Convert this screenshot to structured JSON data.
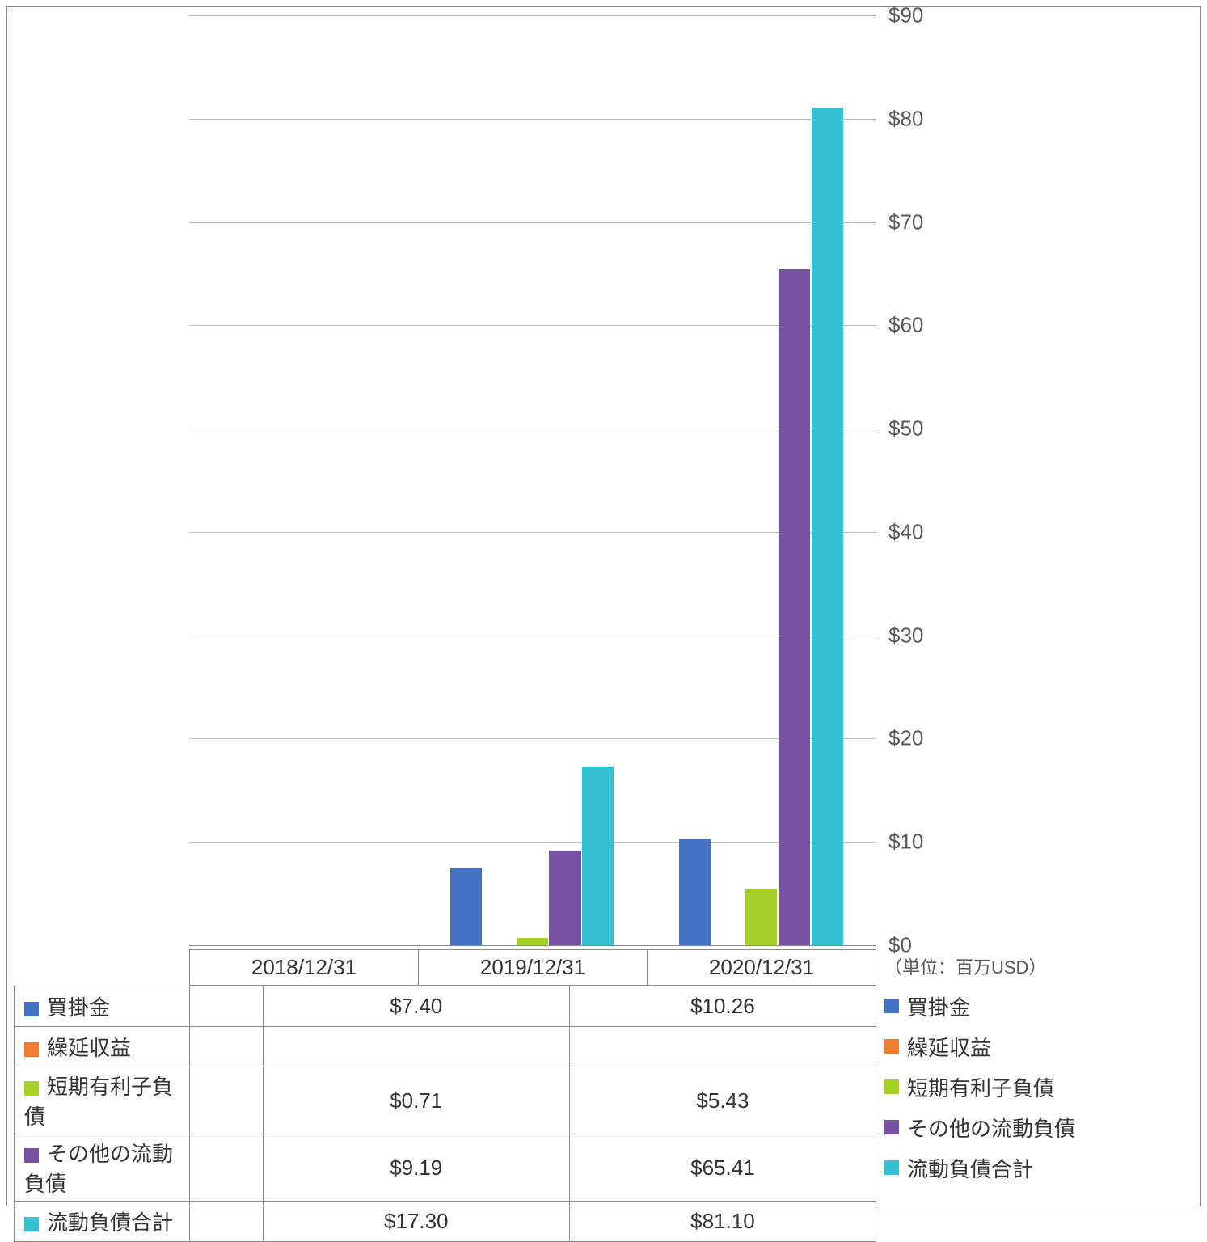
{
  "chart": {
    "type": "bar",
    "unit_label": "（単位：百万USD）",
    "background_color": "#ffffff",
    "grid_color": "#bfbfbf",
    "border_color": "#888888",
    "tick_font_size": 26,
    "tick_color": "#595959",
    "label_font_size": 26,
    "label_color": "#333333",
    "y_axis": {
      "min": 0,
      "max": 90,
      "tick_step": 10,
      "ticks": [
        "$0",
        "$10",
        "$20",
        "$30",
        "$40",
        "$50",
        "$60",
        "$70",
        "$80",
        "$90"
      ],
      "position": "right"
    },
    "categories": [
      "2018/12/31",
      "2019/12/31",
      "2020/12/31"
    ],
    "series": [
      {
        "name": "買掛金",
        "color": "#4472c4",
        "values": [
          null,
          7.4,
          10.26
        ],
        "display": [
          "",
          "$7.40",
          "$10.26"
        ]
      },
      {
        "name": "繰延収益",
        "color": "#ed7d31",
        "values": [
          null,
          null,
          null
        ],
        "display": [
          "",
          "",
          ""
        ]
      },
      {
        "name": "短期有利子負債",
        "color": "#a5d028",
        "values": [
          null,
          0.71,
          5.43
        ],
        "display": [
          "",
          "$0.71",
          "$5.43"
        ]
      },
      {
        "name": "その他の流動負債",
        "color": "#7851a2",
        "values": [
          null,
          9.19,
          65.41
        ],
        "display": [
          "",
          "$9.19",
          "$65.41"
        ]
      },
      {
        "name": "流動負債合計",
        "color": "#33c0d0",
        "values": [
          null,
          17.3,
          81.1
        ],
        "display": [
          "",
          "$17.30",
          "$81.10"
        ]
      }
    ],
    "bar_group_width_ratio": 0.72,
    "bar_gap_ratio": 0.04
  }
}
